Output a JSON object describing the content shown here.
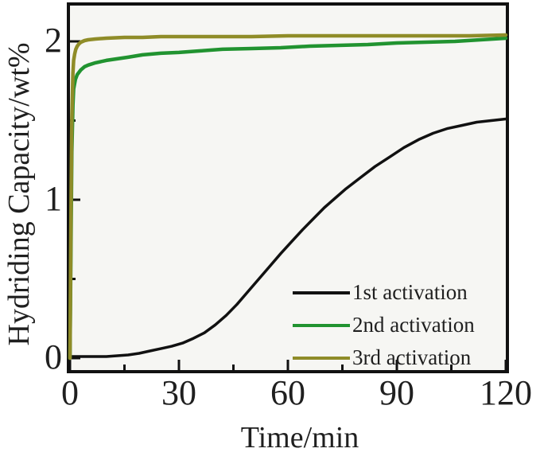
{
  "chart_data": {
    "type": "line",
    "title": "",
    "xlabel": "Time/min",
    "ylabel": "Hydriding Capacity/wt%",
    "xlim": [
      0,
      120
    ],
    "ylim": [
      0,
      2.25
    ],
    "x_major_ticks": [
      0,
      30,
      60,
      90,
      120
    ],
    "x_minor_ticks": [
      15,
      45,
      75,
      105
    ],
    "y_major_ticks": [
      0,
      1,
      2
    ],
    "y_minor_ticks": [
      0.5,
      1.5
    ],
    "grid": false,
    "legend_position": "inside-lower-right",
    "plot_bg_color": "#f6f6f3",
    "frame_color": "#111111",
    "series": [
      {
        "name": "1st activation",
        "color": "#111111",
        "points": [
          [
            0,
            0.01
          ],
          [
            5,
            0.01
          ],
          [
            10,
            0.01
          ],
          [
            13,
            0.015
          ],
          [
            16,
            0.02
          ],
          [
            19,
            0.03
          ],
          [
            22,
            0.045
          ],
          [
            25,
            0.06
          ],
          [
            28,
            0.075
          ],
          [
            31,
            0.095
          ],
          [
            34,
            0.125
          ],
          [
            37,
            0.16
          ],
          [
            40,
            0.21
          ],
          [
            43,
            0.27
          ],
          [
            46,
            0.34
          ],
          [
            49,
            0.42
          ],
          [
            52,
            0.5
          ],
          [
            55,
            0.58
          ],
          [
            58,
            0.66
          ],
          [
            61,
            0.735
          ],
          [
            64,
            0.81
          ],
          [
            67,
            0.88
          ],
          [
            70,
            0.95
          ],
          [
            73,
            1.01
          ],
          [
            76,
            1.07
          ],
          [
            80,
            1.14
          ],
          [
            84,
            1.21
          ],
          [
            88,
            1.27
          ],
          [
            92,
            1.33
          ],
          [
            96,
            1.38
          ],
          [
            100,
            1.42
          ],
          [
            104,
            1.45
          ],
          [
            108,
            1.47
          ],
          [
            112,
            1.49
          ],
          [
            116,
            1.5
          ],
          [
            120,
            1.51
          ]
        ]
      },
      {
        "name": "2nd activation",
        "color": "#219330",
        "points": [
          [
            0,
            0
          ],
          [
            0.3,
            0.8
          ],
          [
            0.5,
            1.3
          ],
          [
            0.8,
            1.6
          ],
          [
            1,
            1.7
          ],
          [
            1.5,
            1.76
          ],
          [
            2,
            1.79
          ],
          [
            3,
            1.82
          ],
          [
            4,
            1.84
          ],
          [
            5,
            1.85
          ],
          [
            7,
            1.865
          ],
          [
            10,
            1.88
          ],
          [
            13,
            1.89
          ],
          [
            16,
            1.9
          ],
          [
            20,
            1.915
          ],
          [
            25,
            1.925
          ],
          [
            30,
            1.93
          ],
          [
            36,
            1.94
          ],
          [
            42,
            1.95
          ],
          [
            50,
            1.955
          ],
          [
            58,
            1.96
          ],
          [
            66,
            1.97
          ],
          [
            74,
            1.975
          ],
          [
            82,
            1.98
          ],
          [
            90,
            1.99
          ],
          [
            98,
            1.995
          ],
          [
            106,
            2.0
          ],
          [
            113,
            2.01
          ],
          [
            120,
            2.02
          ]
        ]
      },
      {
        "name": "3rd activation",
        "color": "#8f8c28",
        "points": [
          [
            0,
            0
          ],
          [
            0.3,
            1.0
          ],
          [
            0.5,
            1.5
          ],
          [
            0.8,
            1.8
          ],
          [
            1,
            1.88
          ],
          [
            1.3,
            1.92
          ],
          [
            1.6,
            1.95
          ],
          [
            2,
            1.97
          ],
          [
            2.5,
            1.985
          ],
          [
            3,
            1.995
          ],
          [
            4,
            2.005
          ],
          [
            5,
            2.01
          ],
          [
            7,
            2.015
          ],
          [
            10,
            2.02
          ],
          [
            15,
            2.025
          ],
          [
            20,
            2.025
          ],
          [
            25,
            2.03
          ],
          [
            30,
            2.03
          ],
          [
            40,
            2.03
          ],
          [
            50,
            2.03
          ],
          [
            60,
            2.035
          ],
          [
            70,
            2.035
          ],
          [
            80,
            2.035
          ],
          [
            90,
            2.035
          ],
          [
            100,
            2.035
          ],
          [
            110,
            2.035
          ],
          [
            120,
            2.04
          ]
        ]
      }
    ]
  }
}
